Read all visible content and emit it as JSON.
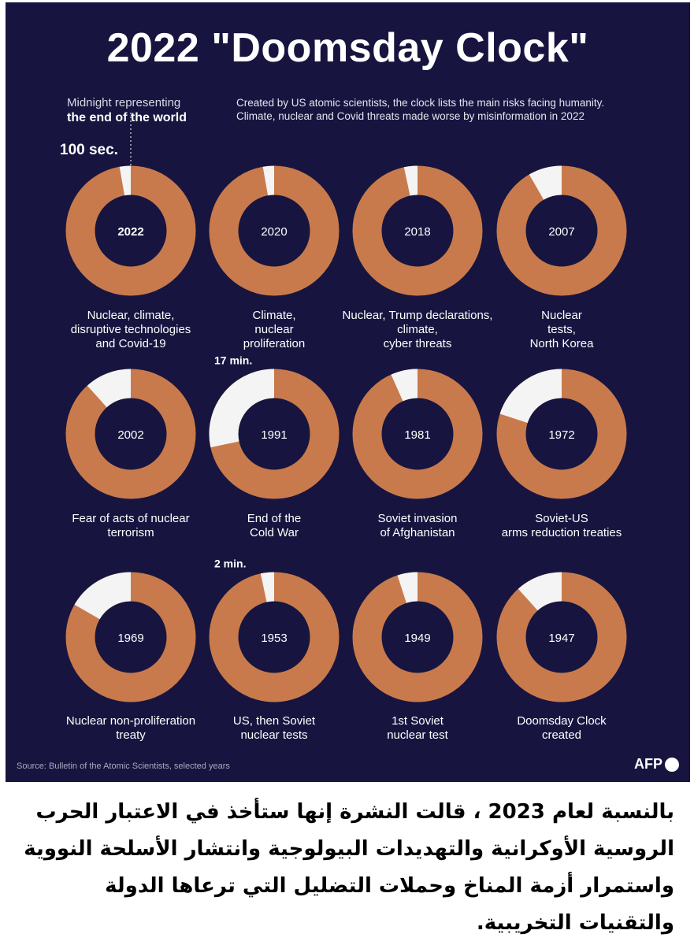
{
  "title": "2022 \"Doomsday Clock\"",
  "midnight_note": {
    "line1": "Midnight representing",
    "line2": "the end of the world"
  },
  "subtitle": {
    "line1": "Created by US atomic scientists, the clock lists the main risks facing humanity.",
    "line2": "Climate, nuclear and Covid threats made worse by misinformation in 2022"
  },
  "colors": {
    "background": "#17153f",
    "ring": "#c97a4c",
    "gap": "#f4f4f4",
    "text": "#ffffff"
  },
  "chart_data": {
    "type": "pie",
    "unit": "seconds to midnight",
    "title": "2022 \"Doomsday Clock\"",
    "clocks": [
      {
        "year": "2022",
        "seconds": 100,
        "label": [
          "Nuclear, climate,",
          "disruptive technologies",
          "and Covid-19"
        ],
        "annotation": "100 sec.",
        "highlight": true
      },
      {
        "year": "2020",
        "seconds": 100,
        "label": [
          "Climate,",
          "nuclear",
          "proliferation"
        ]
      },
      {
        "year": "2018",
        "seconds": 120,
        "label": [
          "Nuclear, Trump declarations,",
          "climate,",
          "cyber threats"
        ]
      },
      {
        "year": "2007",
        "seconds": 300,
        "label": [
          "Nuclear",
          "tests,",
          "North Korea"
        ]
      },
      {
        "year": "2002",
        "seconds": 420,
        "label": [
          "Fear of acts of nuclear",
          "terrorism"
        ]
      },
      {
        "year": "1991",
        "seconds": 1020,
        "label": [
          "End of the",
          "Cold War"
        ],
        "annotation": "17 min."
      },
      {
        "year": "1981",
        "seconds": 240,
        "label": [
          "Soviet invasion",
          "of Afghanistan"
        ]
      },
      {
        "year": "1972",
        "seconds": 720,
        "label": [
          "Soviet-US",
          "arms reduction treaties"
        ]
      },
      {
        "year": "1969",
        "seconds": 600,
        "label": [
          "Nuclear non-proliferation",
          "treaty"
        ]
      },
      {
        "year": "1953",
        "seconds": 120,
        "label": [
          "US, then Soviet",
          "nuclear tests"
        ],
        "annotation": "2 min."
      },
      {
        "year": "1949",
        "seconds": 180,
        "label": [
          "1st Soviet",
          "nuclear test"
        ]
      },
      {
        "year": "1947",
        "seconds": 420,
        "label": [
          "Doomsday Clock",
          "created"
        ]
      }
    ]
  },
  "source": "Source: Bulletin of the Atomic Scientists, selected years",
  "logo": "AFP",
  "arabic_caption": "بالنسبة لعام 2023 ، قالت النشرة إنها ستأخذ في الاعتبار الحرب الروسية الأوكرانية والتهديدات البيولوجية وانتشار الأسلحة النووية واستمرار أزمة المناخ وحملات التضليل التي ترعاها الدولة والتقنيات التخريبية."
}
